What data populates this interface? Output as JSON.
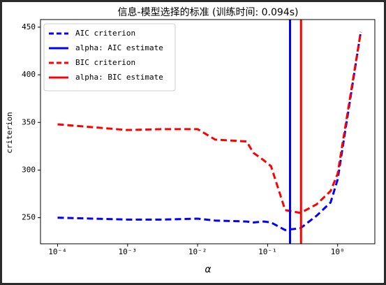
{
  "chart_data": {
    "type": "line",
    "title": "信息-模型选择的标准 (训练时间: 0.094s)",
    "xlabel": "α",
    "ylabel": "criterion",
    "xscale": "log",
    "x": [
      0.0001,
      0.000316,
      0.001,
      0.00316,
      0.01,
      0.0178,
      0.05,
      0.063,
      0.089,
      0.112,
      0.178,
      0.295,
      0.5,
      0.794,
      1.0,
      2.14
    ],
    "series": [
      {
        "name": "AIC criterion",
        "color": "#0000ff",
        "linestyle": "dashed",
        "values": [
          250,
          249,
          248,
          248,
          249,
          247,
          246,
          245,
          246,
          245,
          237,
          239,
          252,
          266,
          290,
          445
        ]
      },
      {
        "name": "BIC criterion",
        "color": "#ff0000",
        "linestyle": "dashed",
        "values": [
          348,
          345,
          342,
          343,
          343,
          332,
          330,
          318,
          310,
          304,
          258,
          255,
          264,
          278,
          296,
          445
        ]
      }
    ],
    "vlines": [
      {
        "name": "alpha: AIC estimate",
        "color": "#0000ff",
        "x": 0.209
      },
      {
        "name": "alpha: BIC estimate",
        "color": "#ff0000",
        "x": 0.3
      }
    ],
    "xlim": [
      5.7e-05,
      3.4
    ],
    "ylim": [
      222.6,
      458
    ],
    "xticks": [
      {
        "value": 0.0001,
        "label": "10⁻⁴"
      },
      {
        "value": 0.001,
        "label": "10⁻³"
      },
      {
        "value": 0.01,
        "label": "10⁻²"
      },
      {
        "value": 0.1,
        "label": "10⁻¹"
      },
      {
        "value": 1,
        "label": "10⁰"
      }
    ],
    "yticks": [
      250,
      300,
      350,
      400,
      450
    ],
    "legend": "upper left"
  }
}
